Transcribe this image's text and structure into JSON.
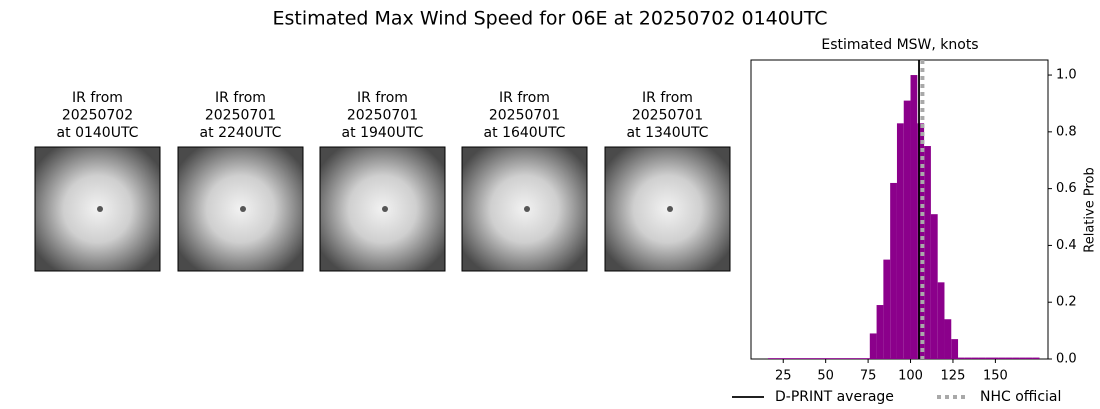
{
  "title": "Estimated Max Wind Speed for 06E at 20250702 0140UTC",
  "images": [
    {
      "caption": [
        "IR from",
        "20250702",
        "at 0140UTC"
      ]
    },
    {
      "caption": [
        "IR from",
        "20250701",
        "at 2240UTC"
      ]
    },
    {
      "caption": [
        "IR from",
        "20250701",
        "at 1940UTC"
      ]
    },
    {
      "caption": [
        "IR from",
        "20250701",
        "at 1640UTC"
      ]
    },
    {
      "caption": [
        "IR from",
        "20250701",
        "at 1340UTC"
      ]
    }
  ],
  "chart_data": {
    "type": "histogram",
    "title": "Estimated MSW, knots",
    "y_label": "Relative Prob",
    "color": "#8b008b",
    "bins": [
      16,
      20,
      24,
      28,
      32,
      36,
      40,
      44,
      48,
      52,
      56,
      60,
      64,
      68,
      72,
      76,
      80,
      84,
      88,
      92,
      96,
      100,
      104,
      108,
      112,
      116,
      120,
      124,
      128,
      132,
      136,
      140,
      144,
      148,
      152,
      156,
      160,
      164,
      168,
      172,
      176
    ],
    "values": [
      0.003,
      0.003,
      0.003,
      0.003,
      0.003,
      0.003,
      0.003,
      0.003,
      0.003,
      0.003,
      0.003,
      0.003,
      0.003,
      0.003,
      0.003,
      0.09,
      0.19,
      0.35,
      0.62,
      0.83,
      0.91,
      1.0,
      0.83,
      0.75,
      0.51,
      0.27,
      0.14,
      0.07,
      0.005,
      0.005,
      0.005,
      0.005,
      0.005,
      0.005,
      0.005,
      0.005,
      0.005,
      0.005,
      0.005,
      0.005
    ],
    "xlim": [
      6,
      181
    ],
    "xticks": [
      25,
      50,
      75,
      100,
      125,
      150
    ],
    "ylim": [
      0,
      1.053
    ],
    "yticks": [
      {
        "value": 0,
        "label": "0.0"
      },
      0.2,
      0.4,
      0.6,
      0.8,
      {
        "value": 1,
        "label": "1.0"
      }
    ],
    "lines": [
      {
        "name": "D-PRINT average",
        "value": 105,
        "color": "#000000",
        "style": "solid"
      },
      {
        "name": "NHC official",
        "value": 107,
        "color": "#a9a9a9",
        "style": "dotted"
      }
    ]
  }
}
